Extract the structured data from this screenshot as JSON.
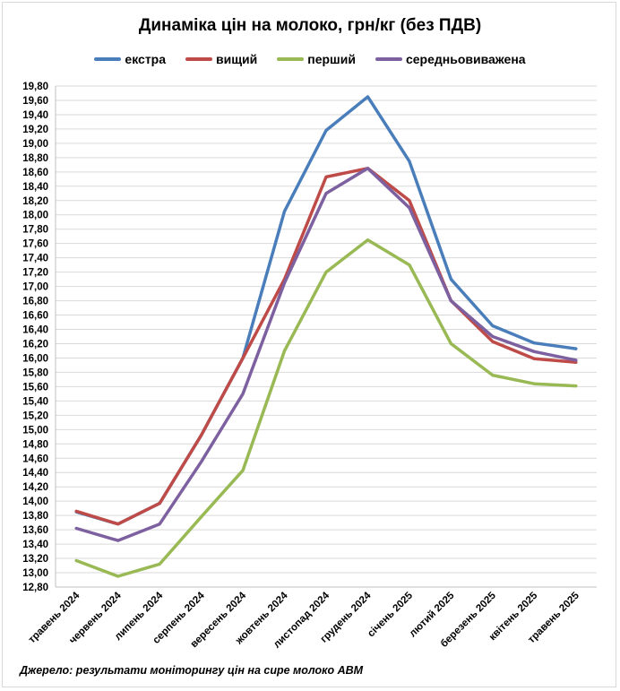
{
  "chart_data": {
    "type": "line",
    "title": "Динаміка цін на молоко, грн/кг (без ПДВ)",
    "xlabel": "",
    "ylabel": "",
    "ylim": [
      12.8,
      19.8
    ],
    "ystep": 0.2,
    "grid": true,
    "legend_position": "top",
    "categories": [
      "травень 2024",
      "червень 2024",
      "липень 2024",
      "серпень 2024",
      "вересень 2024",
      "жовтень 2024",
      "листопад 2024",
      "грудень 2024",
      "січень 2025",
      "лютий 2025",
      "березень 2025",
      "квітень 2025",
      "травень 2025"
    ],
    "series": [
      {
        "name": "екстра",
        "color": "#4a7ebb",
        "values": [
          13.85,
          13.68,
          13.97,
          14.92,
          16.0,
          18.05,
          19.18,
          19.65,
          18.75,
          17.1,
          16.45,
          16.21,
          16.13
        ]
      },
      {
        "name": "вищий",
        "color": "#be4b48",
        "values": [
          13.86,
          13.68,
          13.97,
          14.92,
          16.0,
          17.1,
          18.53,
          18.65,
          18.2,
          16.8,
          16.23,
          15.99,
          15.94
        ]
      },
      {
        "name": "перший",
        "color": "#98b954",
        "values": [
          13.17,
          12.95,
          13.12,
          13.78,
          14.43,
          16.1,
          17.2,
          17.65,
          17.3,
          16.2,
          15.76,
          15.64,
          15.61
        ]
      },
      {
        "name": "середньовиважена",
        "color": "#7d60a0",
        "values": [
          13.62,
          13.45,
          13.68,
          14.55,
          15.5,
          17.05,
          18.3,
          18.65,
          18.1,
          16.8,
          16.3,
          16.09,
          15.97
        ]
      }
    ]
  },
  "source": "Джерело: результати моніторингу цін на сире молоко АВМ"
}
